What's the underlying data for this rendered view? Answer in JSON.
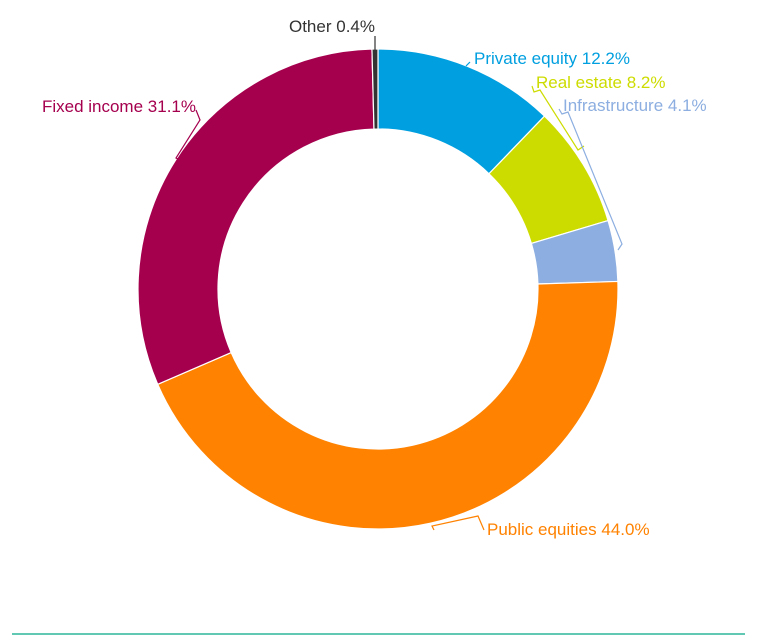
{
  "chart_data": {
    "type": "donut",
    "categories": [
      "Private equity",
      "Real estate",
      "Infrastructure",
      "Public equities",
      "Fixed income",
      "Other"
    ],
    "values": [
      12.2,
      8.2,
      4.1,
      44.0,
      31.1,
      0.4
    ],
    "value_labels": [
      "12.2%",
      "8.2%",
      "4.1%",
      "44.0%",
      "31.1%",
      "0.4%"
    ],
    "colors": [
      "#009fdf",
      "#cddc00",
      "#8caee0",
      "#ff8200",
      "#a5004e",
      "#333333"
    ]
  }
}
